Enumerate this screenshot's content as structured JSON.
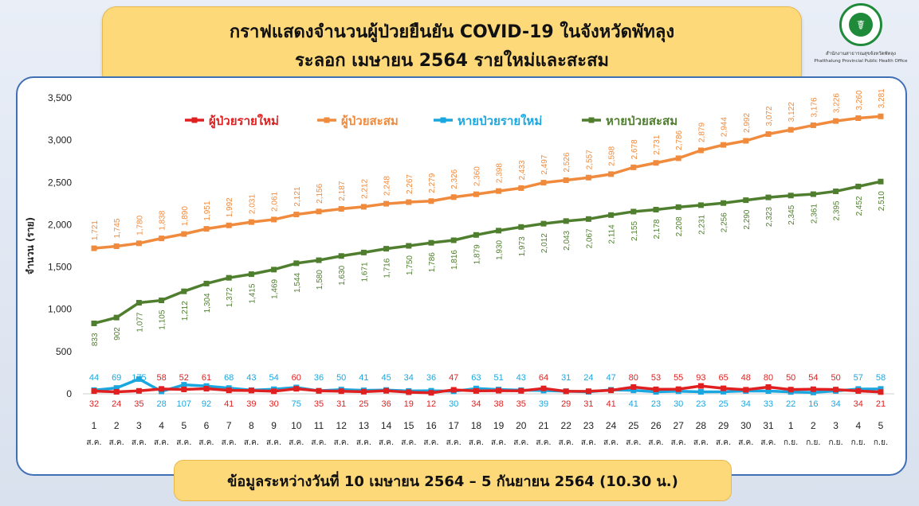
{
  "header": {
    "title_line1": "กราฟแสดงจำนวนผู้ป่วยยืนยัน COVID-19 ในจังหวัดพัทลุง",
    "title_line2": "ระลอก เมษายน 2564 รายใหม่และสะสม"
  },
  "logo": {
    "name_th": "สำนักงานสาธารณสุขจังหวัดพัทลุง",
    "name_en": "Phatthalung Provincial Public Health Office",
    "seal_text": "MINISTRY OF PUBLIC HEALTH"
  },
  "footer": {
    "text": "ข้อมูลระหว่างวันที่ 10 เมษายน 2564 – 5 กันยายน 2564 (10.30 น.)"
  },
  "chart_data": {
    "type": "line",
    "ylabel": "จำนวน (ราย)",
    "xlabel": "",
    "ylim": [
      0,
      3500
    ],
    "yticks": [
      "0",
      "500",
      "1,000",
      "1,500",
      "2,000",
      "2,500",
      "3,000",
      "3,500"
    ],
    "legend_position": "top",
    "categories": [
      {
        "day": "1",
        "month": "ส.ค."
      },
      {
        "day": "2",
        "month": "ส.ค."
      },
      {
        "day": "3",
        "month": "ส.ค."
      },
      {
        "day": "4",
        "month": "ส.ค."
      },
      {
        "day": "5",
        "month": "ส.ค."
      },
      {
        "day": "6",
        "month": "ส.ค."
      },
      {
        "day": "7",
        "month": "ส.ค."
      },
      {
        "day": "8",
        "month": "ส.ค."
      },
      {
        "day": "9",
        "month": "ส.ค."
      },
      {
        "day": "10",
        "month": "ส.ค."
      },
      {
        "day": "11",
        "month": "ส.ค."
      },
      {
        "day": "12",
        "month": "ส.ค."
      },
      {
        "day": "13",
        "month": "ส.ค."
      },
      {
        "day": "14",
        "month": "ส.ค."
      },
      {
        "day": "15",
        "month": "ส.ค."
      },
      {
        "day": "16",
        "month": "ส.ค."
      },
      {
        "day": "17",
        "month": "ส.ค."
      },
      {
        "day": "18",
        "month": "ส.ค."
      },
      {
        "day": "19",
        "month": "ส.ค."
      },
      {
        "day": "20",
        "month": "ส.ค."
      },
      {
        "day": "21",
        "month": "ส.ค."
      },
      {
        "day": "22",
        "month": "ส.ค."
      },
      {
        "day": "23",
        "month": "ส.ค."
      },
      {
        "day": "24",
        "month": "ส.ค."
      },
      {
        "day": "25",
        "month": "ส.ค."
      },
      {
        "day": "26",
        "month": "ส.ค."
      },
      {
        "day": "27",
        "month": "ส.ค."
      },
      {
        "day": "28",
        "month": "ส.ค."
      },
      {
        "day": "29",
        "month": "ส.ค."
      },
      {
        "day": "30",
        "month": "ส.ค."
      },
      {
        "day": "31",
        "month": "ส.ค."
      },
      {
        "day": "1",
        "month": "ก.ย."
      },
      {
        "day": "2",
        "month": "ก.ย."
      },
      {
        "day": "3",
        "month": "ก.ย."
      },
      {
        "day": "4",
        "month": "ก.ย."
      },
      {
        "day": "5",
        "month": "ก.ย."
      }
    ],
    "series": [
      {
        "name": "ผู้ป่วยรายใหม่",
        "color": "#e02020",
        "values": [
          32,
          24,
          35,
          58,
          52,
          61,
          41,
          39,
          30,
          60,
          35,
          31,
          25,
          36,
          19,
          12,
          47,
          34,
          38,
          35,
          64,
          29,
          31,
          41,
          80,
          53,
          55,
          93,
          65,
          48,
          80,
          50,
          54,
          50,
          34,
          21
        ]
      },
      {
        "name": "ผู้ป่วยสะสม",
        "color": "#f08a3c",
        "values": [
          1721,
          1745,
          1780,
          1838,
          1890,
          1951,
          1992,
          2031,
          2061,
          2121,
          2156,
          2187,
          2212,
          2248,
          2267,
          2279,
          2326,
          2360,
          2398,
          2433,
          2497,
          2526,
          2557,
          2598,
          2678,
          2731,
          2786,
          2879,
          2944,
          2992,
          3072,
          3122,
          3176,
          3226,
          3260,
          3281
        ]
      },
      {
        "name": "หายป่วยรายใหม่",
        "color": "#1aa7e0",
        "values": [
          44,
          69,
          175,
          28,
          107,
          92,
          68,
          43,
          54,
          75,
          36,
          50,
          41,
          45,
          34,
          36,
          30,
          63,
          51,
          43,
          39,
          31,
          24,
          47,
          41,
          23,
          30,
          23,
          25,
          34,
          33,
          22,
          16,
          34,
          57,
          58
        ]
      },
      {
        "name": "หายป่วยสะสม",
        "color": "#4f7f2e",
        "values": [
          833,
          902,
          1077,
          1105,
          1212,
          1304,
          1372,
          1415,
          1469,
          1544,
          1580,
          1630,
          1671,
          1716,
          1750,
          1786,
          1816,
          1879,
          1930,
          1973,
          2012,
          2043,
          2067,
          2114,
          2155,
          2178,
          2208,
          2231,
          2256,
          2290,
          2323,
          2345,
          2361,
          2395,
          2452,
          2510
        ]
      }
    ]
  }
}
